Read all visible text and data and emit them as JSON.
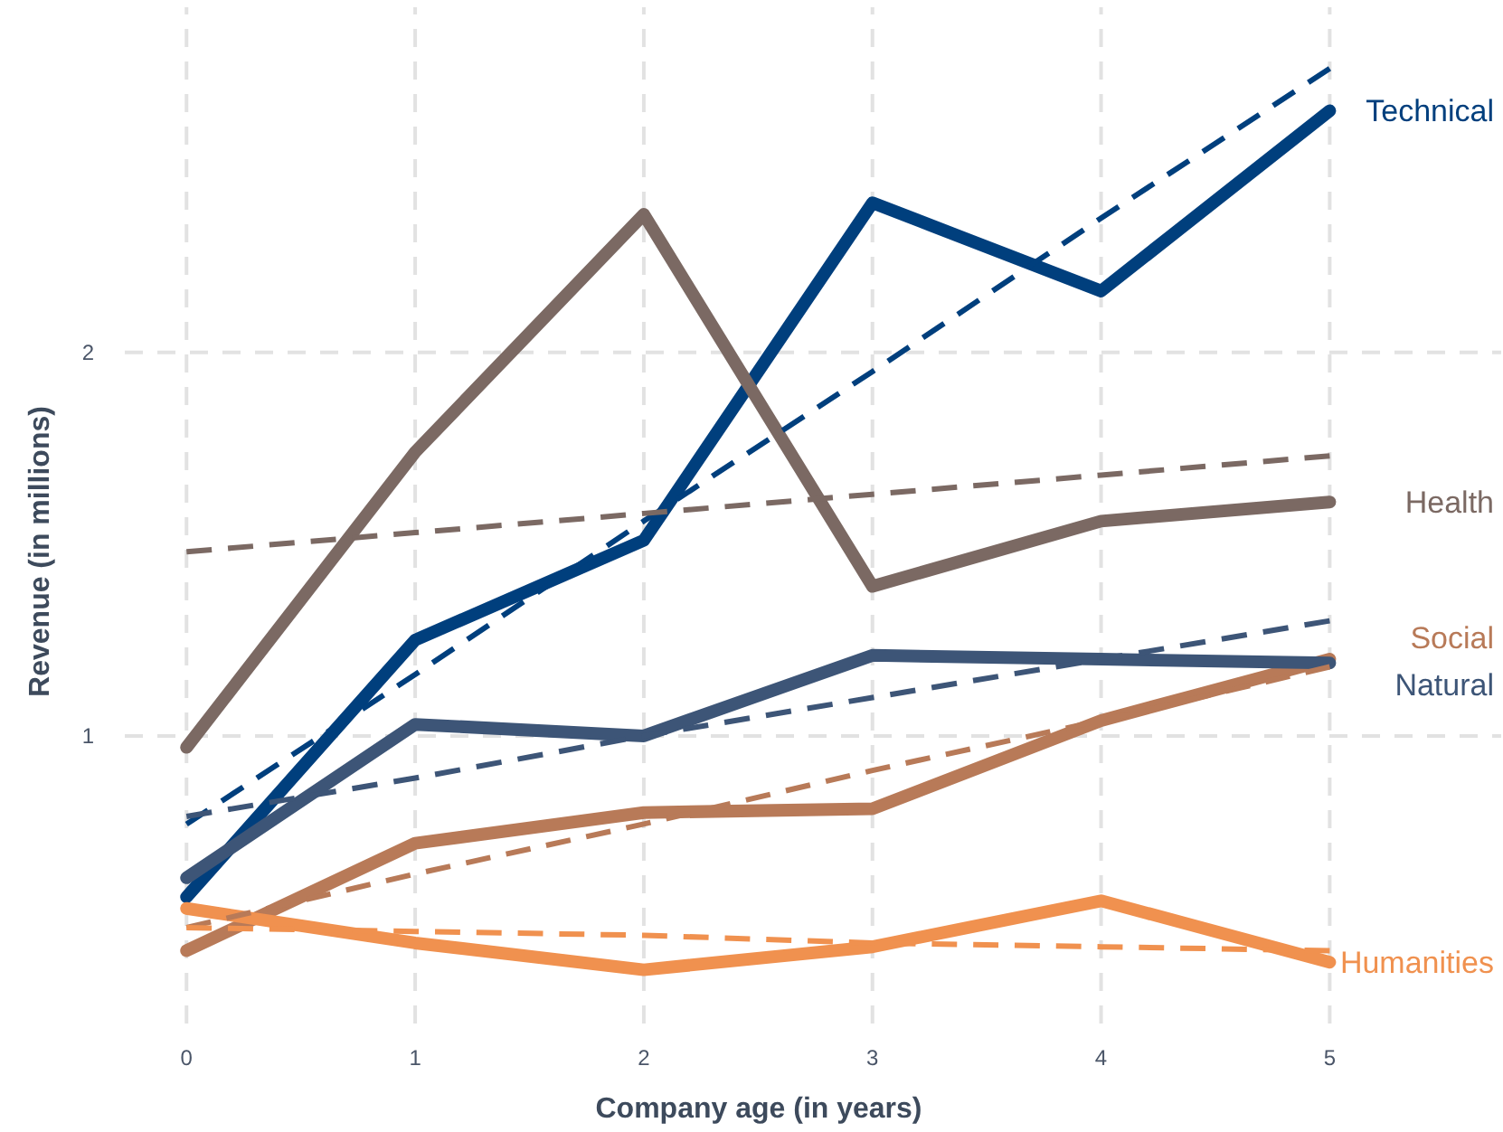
{
  "chart_data": {
    "type": "line",
    "xlabel": "Company age (in years)",
    "ylabel": "Revenue (in millions)",
    "x": [
      0,
      1,
      2,
      3,
      4,
      5
    ],
    "xlim": [
      -0.27,
      5.75
    ],
    "xticks": [
      0,
      1,
      2,
      3,
      4,
      5
    ],
    "ylim": [
      0.25,
      2.9
    ],
    "yticks": [
      1,
      2
    ],
    "grid": true,
    "legend": false,
    "marker": "none",
    "series": [
      {
        "name": "Technical",
        "color": "#003f7d",
        "values": [
          0.58,
          1.25,
          1.51,
          2.39,
          2.16,
          2.63
        ]
      },
      {
        "name": "Health",
        "color": "#7b6963",
        "values": [
          0.97,
          1.74,
          2.36,
          1.39,
          1.56,
          1.61
        ]
      },
      {
        "name": "Social",
        "color": "#b87a58",
        "values": [
          0.44,
          0.72,
          0.8,
          0.81,
          1.04,
          1.2
        ]
      },
      {
        "name": "Natural",
        "color": "#3d5577",
        "values": [
          0.63,
          1.03,
          1.0,
          1.21,
          1.2,
          1.19
        ]
      },
      {
        "name": "Humanities",
        "color": "#f0914f",
        "values": [
          0.55,
          0.46,
          0.39,
          0.45,
          0.57,
          0.41
        ]
      },
      {
        "color": "#003f7d",
        "values": [
          0.77,
          1.16,
          1.56,
          1.95,
          2.35,
          2.74
        ],
        "line_style": "dashed"
      },
      {
        "color": "#7b6963",
        "values": [
          1.48,
          1.53,
          1.58,
          1.63,
          1.68,
          1.73
        ],
        "line_style": "dashed"
      },
      {
        "color": "#b87a58",
        "values": [
          0.5,
          0.64,
          0.77,
          0.91,
          1.04,
          1.18
        ],
        "line_style": "dashed"
      },
      {
        "color": "#3d5577",
        "values": [
          0.79,
          0.89,
          1.0,
          1.1,
          1.2,
          1.3
        ],
        "line_style": "dashed"
      },
      {
        "color": "#f0914f",
        "values": [
          0.5,
          0.49,
          0.48,
          0.46,
          0.45,
          0.44
        ],
        "line_style": "dashed"
      }
    ]
  }
}
